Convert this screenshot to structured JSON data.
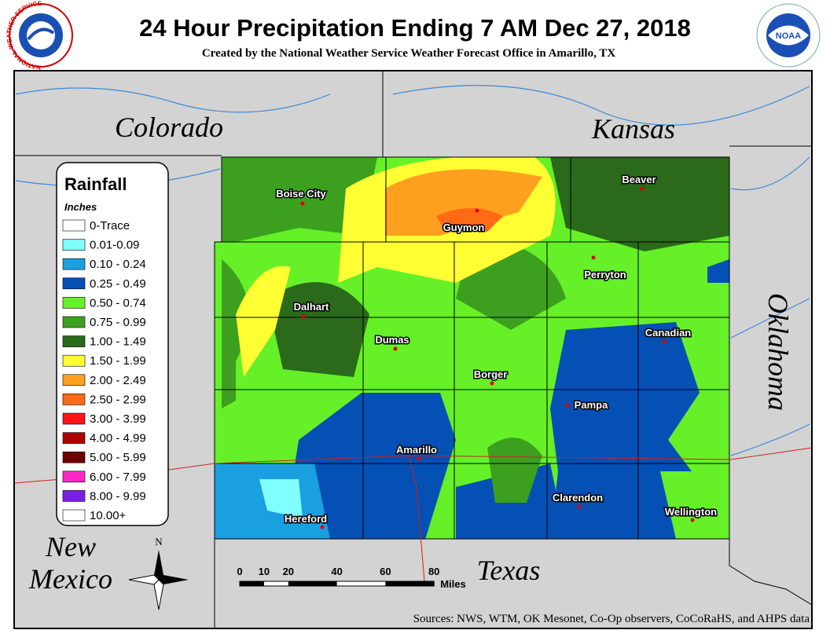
{
  "header": {
    "title": "24 Hour Precipitation Ending 7 AM Dec 27, 2018",
    "subtitle": "Created by the National Weather Service Weather Forecast Office in Amarillo, TX"
  },
  "logos": {
    "nws": "NATIONAL WEATHER SERVICE",
    "noaa": "NOAA"
  },
  "states": {
    "colorado": "Colorado",
    "kansas": "Kansas",
    "oklahoma": "Oklahoma",
    "new_mexico": [
      "New",
      "Mexico"
    ],
    "texas": "Texas"
  },
  "legend": {
    "title": "Rainfall",
    "units": "Inches",
    "items": [
      {
        "label": "0-Trace",
        "color": "#ffffff"
      },
      {
        "label": "0.01-0.09",
        "color": "#80ffff"
      },
      {
        "label": "0.10 - 0.24",
        "color": "#1a9fe0"
      },
      {
        "label": "0.25 - 0.49",
        "color": "#0550b4"
      },
      {
        "label": "0.50 - 0.74",
        "color": "#66f028"
      },
      {
        "label": "0.75 - 0.99",
        "color": "#3ca01e"
      },
      {
        "label": "1.00 - 1.49",
        "color": "#2a6a1a"
      },
      {
        "label": "1.50 - 1.99",
        "color": "#ffff33"
      },
      {
        "label": "2.00 - 2.49",
        "color": "#ffa01e"
      },
      {
        "label": "2.50 - 2.99",
        "color": "#ff6a14"
      },
      {
        "label": "3.00 - 3.99",
        "color": "#ff1414"
      },
      {
        "label": "4.00 - 4.99",
        "color": "#b40000"
      },
      {
        "label": "5.00 - 5.99",
        "color": "#6e0000"
      },
      {
        "label": "6.00 - 7.99",
        "color": "#ff28c8"
      },
      {
        "label": "8.00 - 9.99",
        "color": "#7820e6"
      },
      {
        "label": "10.00+",
        "color": "#ffffff"
      }
    ]
  },
  "cities": [
    {
      "name": "Boise City"
    },
    {
      "name": "Guymon"
    },
    {
      "name": "Beaver"
    },
    {
      "name": "Perryton"
    },
    {
      "name": "Dalhart"
    },
    {
      "name": "Dumas"
    },
    {
      "name": "Canadian"
    },
    {
      "name": "Borger"
    },
    {
      "name": "Pampa"
    },
    {
      "name": "Amarillo"
    },
    {
      "name": "Clarendon"
    },
    {
      "name": "Hereford"
    },
    {
      "name": "Wellington"
    }
  ],
  "scale": {
    "ticks": [
      0,
      10,
      20,
      40,
      60,
      80
    ],
    "unit": "Miles"
  },
  "compass": "N",
  "sources": "Sources:  NWS, WTM, OK Mesonet, Co-Op observers, CoCoRaHS, and AHPS data"
}
